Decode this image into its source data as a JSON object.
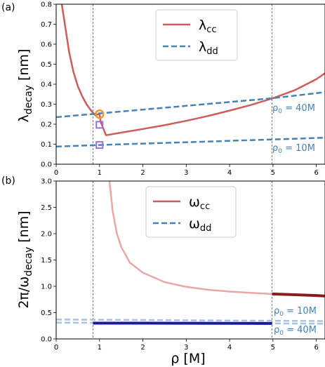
{
  "chart_data": [
    {
      "panel_label": "(a)",
      "type": "line",
      "ylabel": "λdecay [nm]",
      "xlabel": "",
      "xlim": [
        0,
        6.2
      ],
      "ylim": [
        0,
        0.8
      ],
      "xticks": [
        "0",
        "1",
        "2",
        "3",
        "4",
        "5",
        "6"
      ],
      "yticks": [
        "0.0",
        "0.1",
        "0.2",
        "0.3",
        "0.4",
        "0.5",
        "0.6",
        "0.7",
        "0.8"
      ],
      "vlines": [
        0.85,
        4.98
      ],
      "legend": {
        "placement": "top-right",
        "entries": [
          "λcc",
          "λdd"
        ]
      },
      "series": [
        {
          "name": "λcc",
          "color": "#cd5c5c",
          "style": "solid",
          "x": [
            0.13,
            0.2,
            0.3,
            0.4,
            0.5,
            0.6,
            0.7,
            0.8,
            0.9,
            0.97,
            1.0,
            1.03,
            1.15,
            1.5,
            2.0,
            2.5,
            3.0,
            3.5,
            4.0,
            4.5,
            5.0,
            5.5,
            6.0,
            6.2
          ],
          "y": [
            0.8,
            0.7,
            0.56,
            0.46,
            0.39,
            0.34,
            0.3,
            0.27,
            0.245,
            0.25,
            0.25,
            0.21,
            0.145,
            0.158,
            0.176,
            0.195,
            0.217,
            0.241,
            0.268,
            0.297,
            0.33,
            0.37,
            0.425,
            0.455
          ]
        },
        {
          "name": "λdd (ρ0 = 40M)",
          "color": "#4682b4",
          "style": "dashed",
          "x": [
            0,
            1,
            2,
            3,
            4,
            5,
            6,
            6.2
          ],
          "y": [
            0.235,
            0.254,
            0.273,
            0.292,
            0.311,
            0.33,
            0.355,
            0.36
          ]
        },
        {
          "name": "λdd (ρ0 = 10M)",
          "color": "#4682b4",
          "style": "dashed",
          "x": [
            0,
            1,
            2,
            3,
            4,
            5,
            6,
            6.2
          ],
          "y": [
            0.088,
            0.096,
            0.103,
            0.11,
            0.117,
            0.124,
            0.131,
            0.133
          ]
        }
      ],
      "markers": [
        {
          "x": 1.0,
          "y": 0.25,
          "shape": "circle",
          "color": "#f0962e"
        },
        {
          "x": 1.0,
          "y": 0.197,
          "shape": "square",
          "color": "#9370db"
        },
        {
          "x": 1.0,
          "y": 0.096,
          "shape": "square",
          "color": "#9370db"
        }
      ],
      "annotations": [
        {
          "text": "ρ0 = 40M",
          "color": "#4682b4"
        },
        {
          "text": "ρ0 = 10M",
          "color": "#4682b4"
        }
      ]
    },
    {
      "panel_label": "(b)",
      "type": "line",
      "ylabel": "2π/ωdecay [nm]",
      "xlabel": "ρ [M]",
      "xlim": [
        0,
        6.2
      ],
      "ylim": [
        0,
        3.0
      ],
      "xticks": [
        "0",
        "1",
        "2",
        "3",
        "4",
        "5",
        "6"
      ],
      "yticks": [
        "0.0",
        "0.5",
        "1.0",
        "1.5",
        "2.0",
        "2.5",
        "3.0"
      ],
      "vlines": [
        0.85,
        4.98
      ],
      "legend": {
        "placement": "top-right",
        "entries": [
          "ωcc",
          "ωdd"
        ]
      },
      "series": [
        {
          "name": "ωcc",
          "color": "#eaa7a7",
          "style": "solid",
          "x": [
            1.23,
            1.3,
            1.4,
            1.5,
            1.7,
            2.0,
            2.5,
            3.0,
            3.5,
            4.0,
            4.5,
            4.98
          ],
          "y": [
            3.0,
            2.45,
            2.0,
            1.75,
            1.45,
            1.26,
            1.08,
            0.99,
            0.935,
            0.9,
            0.875,
            0.855
          ]
        },
        {
          "name": "ωcc (highlighted)",
          "color": "#8b1a1a",
          "style": "solid",
          "x": [
            4.98,
            5.5,
            6.0,
            6.2
          ],
          "y": [
            0.855,
            0.84,
            0.825,
            0.815
          ]
        },
        {
          "name": "ωdd (ρ0 = 10M)",
          "color": "#a9c4de",
          "style": "dashed",
          "x": [
            0,
            1,
            2,
            3,
            4,
            5,
            6.2
          ],
          "y": [
            0.37,
            0.365,
            0.36,
            0.355,
            0.35,
            0.345,
            0.34
          ]
        },
        {
          "name": "ωdd (ρ0 = 40M)",
          "color": "#a9c4de",
          "style": "dashed",
          "x": [
            0,
            1,
            2,
            3,
            4,
            5,
            6.2
          ],
          "y": [
            0.31,
            0.305,
            0.3,
            0.298,
            0.296,
            0.294,
            0.29
          ]
        },
        {
          "name": "ωdd (highlighted)",
          "color": "#1a1aa0",
          "style": "solid",
          "x": [
            0.85,
            2.0,
            3.0,
            4.0,
            4.98
          ],
          "y": [
            0.3,
            0.3,
            0.298,
            0.296,
            0.294
          ]
        }
      ],
      "markers": [],
      "annotations": [
        {
          "text": "ρ0 = 10M",
          "color": "#4682b4"
        },
        {
          "text": "ρ0 = 40M",
          "color": "#4682b4"
        }
      ]
    }
  ]
}
